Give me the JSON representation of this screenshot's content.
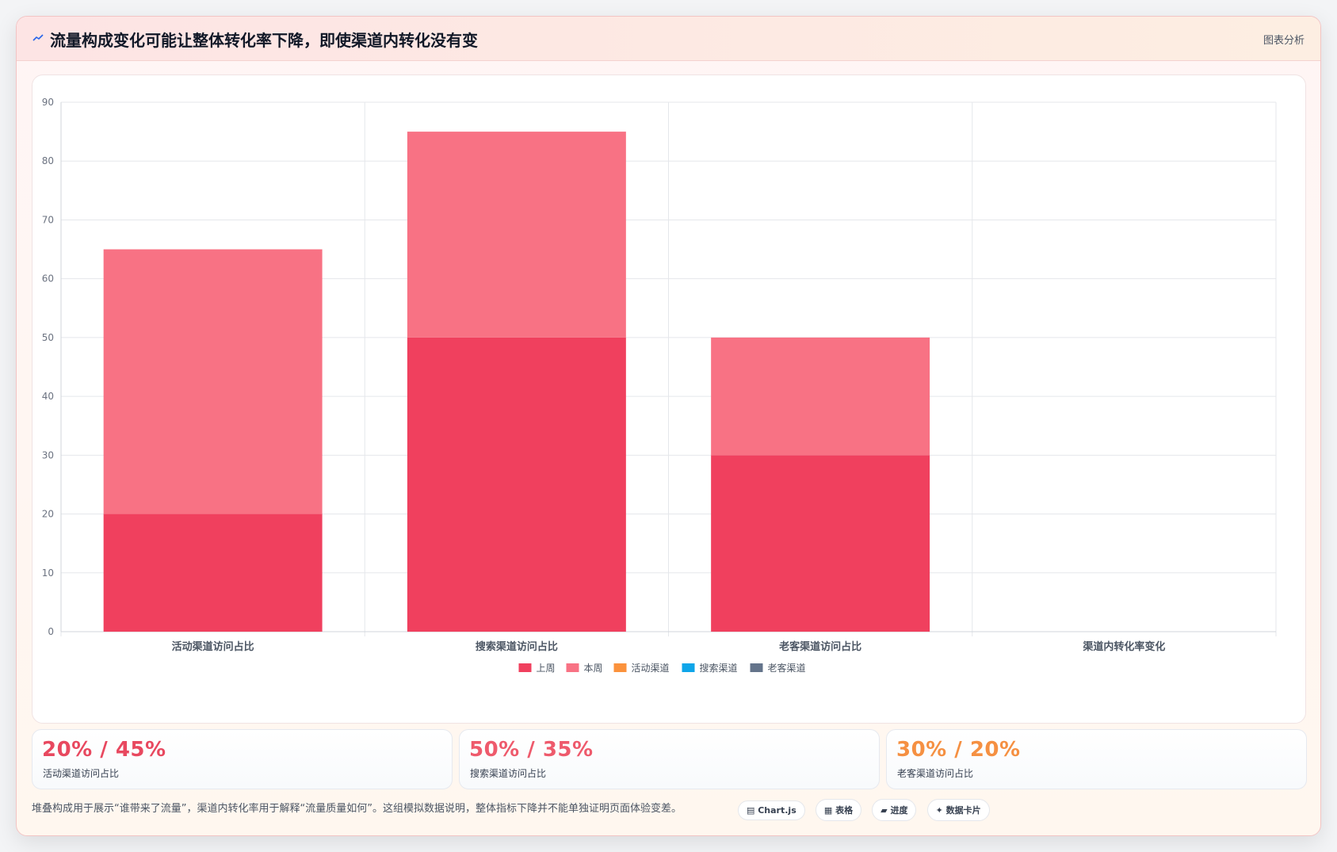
{
  "header": {
    "title": "流量构成变化可能让整体转化率下降，即使渠道内转化没有变",
    "tag": "图表分析",
    "icon": "trend-line-icon"
  },
  "chart_data": {
    "type": "bar",
    "stacked": true,
    "categories": [
      "活动渠道访问占比",
      "搜索渠道访问占比",
      "老客渠道访问占比",
      "渠道内转化率变化"
    ],
    "series": [
      {
        "name": "上周",
        "color": "#f0405e",
        "values": [
          20,
          50,
          30,
          null
        ]
      },
      {
        "name": "本周",
        "color": "#f87284",
        "values": [
          45,
          35,
          20,
          null
        ]
      }
    ],
    "extra_legend": [
      {
        "name": "活动渠道",
        "color": "#fb923c"
      },
      {
        "name": "搜索渠道",
        "color": "#0ea5e9"
      },
      {
        "name": "老客渠道",
        "color": "#64748b"
      }
    ],
    "ylim": [
      0,
      90
    ],
    "yticks": [
      0,
      10,
      20,
      30,
      40,
      50,
      60,
      70,
      80,
      90
    ],
    "grid": true,
    "legend_position": "bottom"
  },
  "stats": [
    {
      "value": "20% / 45%",
      "label": "活动渠道访问占比",
      "color": "#e8485f"
    },
    {
      "value": "50% / 35%",
      "label": "搜索渠道访问占比",
      "color": "#ee5a6c"
    },
    {
      "value": "30% / 20%",
      "label": "老客渠道访问占比",
      "color": "#f59042"
    }
  ],
  "footer": {
    "note": "堆叠构成用于展示“谁带来了流量”，渠道内转化率用于解释“流量质量如何”。这组模拟数据说明，整体指标下降并不能单独证明页面体验变差。",
    "tags": [
      {
        "icon": "chart-icon",
        "label": "Chart.js"
      },
      {
        "icon": "table-icon",
        "label": "表格"
      },
      {
        "icon": "progress-icon",
        "label": "进度"
      },
      {
        "icon": "sparkle-icon",
        "label": "数据卡片"
      }
    ]
  }
}
